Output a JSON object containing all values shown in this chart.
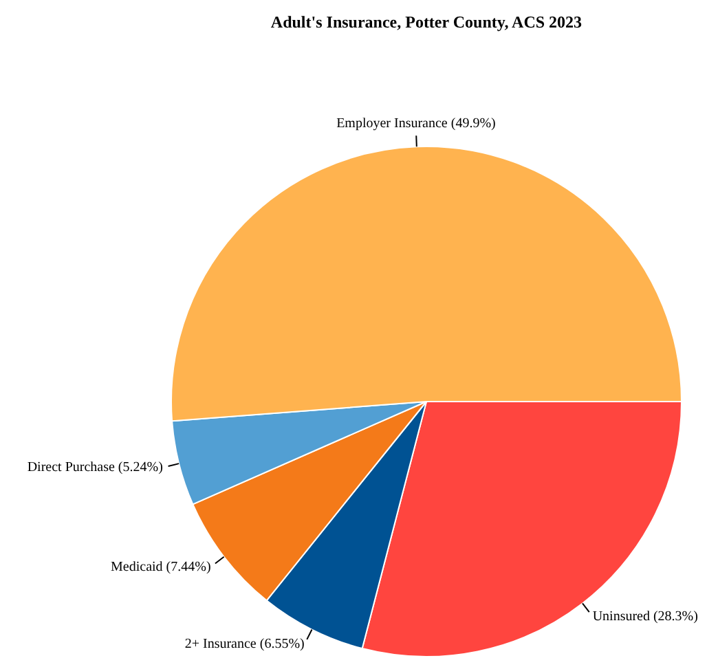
{
  "chart_data": {
    "type": "pie",
    "title": "Adult's Insurance, Potter County, ACS 2023",
    "categories": [
      "Uninsured (28.3%)",
      "2+ Insurance (6.55%)",
      "Medicaid (7.44%)",
      "Direct Purchase (5.24%)",
      "Employer Insurance (49.9%)"
    ],
    "values": [
      28.3,
      6.55,
      7.44,
      5.24,
      49.9
    ],
    "colors": [
      "#ff453f",
      "#005293",
      "#f47a19",
      "#529fd3",
      "#ffb34f"
    ],
    "legend": false
  }
}
